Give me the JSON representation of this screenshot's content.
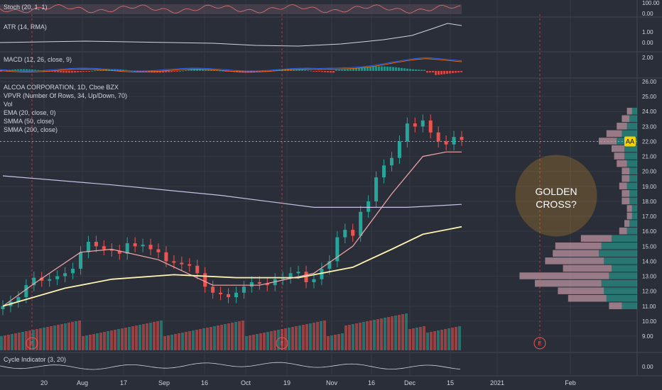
{
  "panes": {
    "stoch": {
      "label": "Stoch (20, 1, 1)",
      "ticks": [
        "100.00",
        "0.00"
      ]
    },
    "atr": {
      "label": "ATR (14, RMA)",
      "ticks": [
        "1.00",
        "0.00"
      ]
    },
    "macd": {
      "label": "MACD (12, 26, close, 9)",
      "ticks": [
        "2.00"
      ]
    },
    "main": {
      "title": "ALCOA CORPORATION, 1D, Cboe BZX",
      "overlays": [
        "VPVR (Number Of Rows, 34, Up/Down, 70)",
        "Vol",
        "EMA (20, close, 0)",
        "SMMA (50, close)",
        "SMMA (200, close)"
      ]
    },
    "cycle": {
      "label": "Cycle Indicator (3, 20)",
      "ticks": [
        "0.00"
      ]
    }
  },
  "annotation": {
    "text": "GOLDEN CROSS?",
    "line1": "GOLDEN",
    "line2": "CROSS?"
  },
  "symbol_badge": {
    "text": "AA",
    "price": 22.0
  },
  "earnings_markers": [
    {
      "label": "E",
      "date": "Jul 16"
    },
    {
      "label": "E",
      "date": "Oct 15"
    },
    {
      "label": "E",
      "date": "Jan 13"
    }
  ],
  "colors": {
    "up": "#26a69a",
    "down": "#ef5350",
    "bg": "#2a2e39",
    "ema": "#f2a8a8",
    "smma50": "#fff3b0",
    "smma200": "#c9c2e6",
    "annotation": "#f5a623",
    "badge": "#f5d300"
  },
  "chart_data": {
    "type": "candlestick",
    "title": "ALCOA CORPORATION, 1D, Cboe BZX",
    "y_axis": {
      "min": 9.0,
      "max": 26.0,
      "ticks": [
        "26.00",
        "25.00",
        "24.00",
        "23.00",
        "22.00",
        "21.00",
        "20.00",
        "19.00",
        "18.00",
        "17.00",
        "16.00",
        "15.00",
        "14.00",
        "13.00",
        "12.00",
        "11.00",
        "10.00",
        "9.00"
      ]
    },
    "x_axis": {
      "ticks": [
        "20",
        "Aug",
        "17",
        "Sep",
        "16",
        "Oct",
        "19",
        "Nov",
        "16",
        "Dec",
        "15",
        "2021",
        "Feb"
      ]
    },
    "close_path": [
      [
        "2020-07-10",
        11.0
      ],
      [
        "2020-07-14",
        11.3
      ],
      [
        "2020-07-16",
        11.6
      ],
      [
        "2020-07-20",
        12.4
      ],
      [
        "2020-07-22",
        12.9
      ],
      [
        "2020-07-24",
        12.7
      ],
      [
        "2020-07-28",
        12.8
      ],
      [
        "2020-07-30",
        13.0
      ],
      [
        "2020-08-03",
        13.2
      ],
      [
        "2020-08-05",
        13.5
      ],
      [
        "2020-08-07",
        14.6
      ],
      [
        "2020-08-11",
        15.3
      ],
      [
        "2020-08-13",
        15.0
      ],
      [
        "2020-08-17",
        14.8
      ],
      [
        "2020-08-19",
        14.7
      ],
      [
        "2020-08-21",
        14.5
      ],
      [
        "2020-08-25",
        15.2
      ],
      [
        "2020-08-27",
        15.0
      ],
      [
        "2020-08-31",
        15.1
      ],
      [
        "2020-09-02",
        14.8
      ],
      [
        "2020-09-04",
        14.6
      ],
      [
        "2020-09-08",
        14.0
      ],
      [
        "2020-09-10",
        13.9
      ],
      [
        "2020-09-14",
        13.8
      ],
      [
        "2020-09-16",
        13.7
      ],
      [
        "2020-09-18",
        13.2
      ],
      [
        "2020-09-22",
        12.3
      ],
      [
        "2020-09-24",
        11.9
      ],
      [
        "2020-09-28",
        11.8
      ],
      [
        "2020-09-30",
        11.6
      ],
      [
        "2020-10-02",
        11.9
      ],
      [
        "2020-10-06",
        12.3
      ],
      [
        "2020-10-08",
        12.6
      ],
      [
        "2020-10-12",
        12.5
      ],
      [
        "2020-10-14",
        12.4
      ],
      [
        "2020-10-16",
        12.8
      ],
      [
        "2020-10-20",
        12.9
      ],
      [
        "2020-10-22",
        13.2
      ],
      [
        "2020-10-26",
        13.3
      ],
      [
        "2020-10-28",
        12.6
      ],
      [
        "2020-10-30",
        12.8
      ],
      [
        "2020-11-03",
        13.5
      ],
      [
        "2020-11-05",
        14.0
      ],
      [
        "2020-11-09",
        15.6
      ],
      [
        "2020-11-11",
        16.1
      ],
      [
        "2020-11-13",
        15.7
      ],
      [
        "2020-11-17",
        17.3
      ],
      [
        "2020-11-19",
        18.0
      ],
      [
        "2020-11-23",
        19.6
      ],
      [
        "2020-11-25",
        20.4
      ],
      [
        "2020-11-27",
        20.9
      ],
      [
        "2020-12-01",
        22.0
      ],
      [
        "2020-12-03",
        23.2
      ],
      [
        "2020-12-07",
        23.0
      ],
      [
        "2020-12-09",
        23.4
      ],
      [
        "2020-12-11",
        22.6
      ],
      [
        "2020-12-15",
        22.0
      ],
      [
        "2020-12-17",
        21.8
      ],
      [
        "2020-12-21",
        22.3
      ],
      [
        "2020-12-23",
        22.1
      ]
    ],
    "series": [
      {
        "name": "EMA (20, close, 0)",
        "values": [
          [
            0,
            11.0
          ],
          [
            4,
            12.5
          ],
          [
            10,
            14.6
          ],
          [
            14,
            14.8
          ],
          [
            20,
            14.1
          ],
          [
            27,
            12.4
          ],
          [
            33,
            12.4
          ],
          [
            40,
            13.2
          ],
          [
            45,
            15.0
          ],
          [
            50,
            18.5
          ],
          [
            54,
            21.0
          ],
          [
            57,
            21.3
          ],
          [
            59,
            21.3
          ]
        ]
      },
      {
        "name": "SMMA (50, close)",
        "values": [
          [
            0,
            11.0
          ],
          [
            8,
            12.2
          ],
          [
            14,
            12.8
          ],
          [
            22,
            13.1
          ],
          [
            30,
            12.9
          ],
          [
            38,
            12.9
          ],
          [
            45,
            13.6
          ],
          [
            50,
            14.8
          ],
          [
            54,
            15.8
          ],
          [
            59,
            16.3
          ]
        ]
      },
      {
        "name": "SMMA (200, close)",
        "values": [
          [
            0,
            19.7
          ],
          [
            14,
            19.1
          ],
          [
            28,
            18.4
          ],
          [
            40,
            17.6
          ],
          [
            46,
            17.6
          ],
          [
            52,
            17.6
          ],
          [
            59,
            17.8
          ]
        ]
      }
    ],
    "vpvr": {
      "levels": [
        11.0,
        11.5,
        12.0,
        12.5,
        13.0,
        13.5,
        14.0,
        14.5,
        15.0,
        15.5,
        16.0,
        16.5,
        17.0,
        17.5,
        18.0,
        18.5,
        19.0,
        19.5,
        20.0,
        20.5,
        21.0,
        21.5,
        22.0,
        22.5,
        23.0,
        23.5,
        24.0
      ],
      "up": [
        12,
        24,
        26,
        28,
        22,
        20,
        26,
        30,
        28,
        20,
        8,
        6,
        4,
        4,
        6,
        6,
        8,
        6,
        6,
        8,
        10,
        10,
        16,
        12,
        8,
        6,
        4
      ],
      "down": [
        10,
        30,
        36,
        52,
        70,
        38,
        46,
        36,
        36,
        24,
        6,
        4,
        4,
        4,
        6,
        6,
        6,
        6,
        6,
        8,
        8,
        10,
        14,
        12,
        8,
        6,
        4
      ]
    }
  }
}
